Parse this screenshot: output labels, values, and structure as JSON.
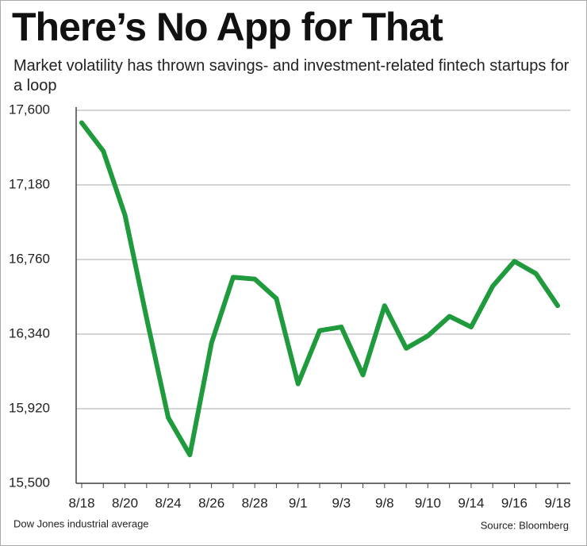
{
  "chart_data": {
    "type": "line",
    "title": "There’s No App for That",
    "subtitle": "Market volatility has thrown savings- and investment-related fintech startups for a loop",
    "note": "Dow Jones industrial average",
    "source": "Source: Bloomberg",
    "categories": [
      "8/18",
      null,
      "8/20",
      null,
      "8/24",
      null,
      "8/26",
      null,
      "8/28",
      null,
      "9/1",
      null,
      "9/3",
      null,
      "9/8",
      null,
      "9/10",
      null,
      "9/14",
      null,
      "9/16",
      null,
      "9/18"
    ],
    "series": [
      {
        "name": "Dow Jones industrial average",
        "color": "#1f9a3c",
        "values": [
          17530,
          17370,
          17010,
          16430,
          15870,
          15660,
          16290,
          16660,
          16650,
          16540,
          16060,
          16360,
          16380,
          16110,
          16500,
          16260,
          16330,
          16440,
          16380,
          16610,
          16750,
          16680,
          16500
        ]
      }
    ],
    "ylim": [
      15500,
      17600
    ],
    "yticks": [
      {
        "value": 15500,
        "label": "15,500"
      },
      {
        "value": 15920,
        "label": "15,920"
      },
      {
        "value": 16340,
        "label": "16,340"
      },
      {
        "value": 16760,
        "label": "16,760"
      },
      {
        "value": 17180,
        "label": "17,180"
      },
      {
        "value": 17600,
        "label": "17,600"
      }
    ],
    "grid": true
  }
}
